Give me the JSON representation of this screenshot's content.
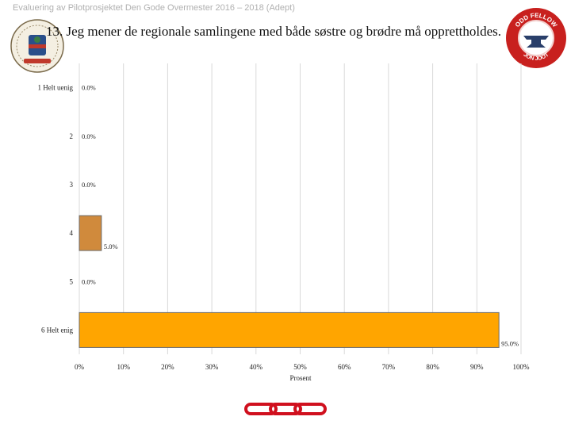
{
  "header": {
    "text": "Evaluering av Pilotprosjektet Den Gode Overmester 2016 – 2018 (Adept)"
  },
  "slide": {
    "title": "13. Jeg mener de regionale samlingene med både søstre og brødre må opprettholdes."
  },
  "logos": {
    "left": {
      "name": "seal-logo",
      "colors": [
        "#2a4f8a",
        "#c0392b",
        "#3a7d44"
      ]
    },
    "right": {
      "name": "odd-fellow-badge",
      "text_top": "ODD FELLOW",
      "text_bottom": "JON JOOT",
      "color": "#c8201e"
    }
  },
  "chart_data": {
    "type": "bar",
    "orientation": "horizontal",
    "categories": [
      "1 Helt uenig",
      "2",
      "3",
      "4",
      "5",
      "6 Helt enig"
    ],
    "values": [
      0.0,
      0.0,
      0.0,
      5.0,
      0.0,
      95.0
    ],
    "value_labels": [
      "0.0%",
      "0.0%",
      "0.0%",
      "5.0%",
      "0.0%",
      "95.0%"
    ],
    "bar_colors": [
      "#d08a3c",
      "#d08a3c",
      "#d08a3c",
      "#d08a3c",
      "#d08a3c",
      "#ffa500"
    ],
    "xlabel": "Prosent",
    "xlim": [
      0,
      100
    ],
    "xticks": [
      "0%",
      "10%",
      "20%",
      "30%",
      "40%",
      "50%",
      "60%",
      "70%",
      "80%",
      "90%",
      "100%"
    ],
    "grid": true,
    "legend": "none"
  },
  "footer": {
    "icon": "chain-icon",
    "color": "#d0101e"
  }
}
